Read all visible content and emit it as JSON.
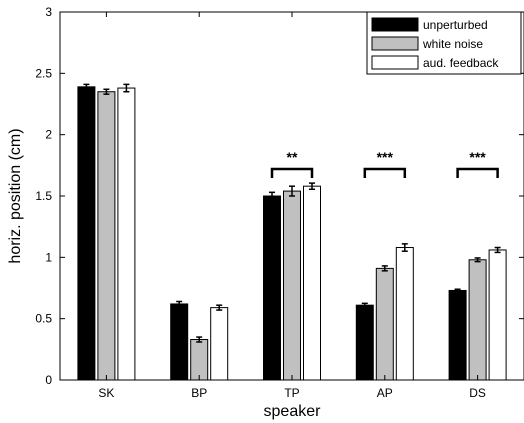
{
  "chart_data": {
    "type": "bar",
    "xlabel": "speaker",
    "ylabel": "horiz. position (cm)",
    "ylim": [
      0,
      3
    ],
    "yticks": [
      "0",
      "0.5",
      "1",
      "1.5",
      "2",
      "2.5",
      "3"
    ],
    "categories": [
      "SK",
      "BP",
      "TP",
      "AP",
      "DS"
    ],
    "grid": false,
    "legend_position": "top-right",
    "series": [
      {
        "name": "unperturbed",
        "color": "#000000",
        "values": [
          2.39,
          0.62,
          1.5,
          0.61,
          0.73
        ],
        "errors": [
          0.02,
          0.02,
          0.03,
          0.015,
          0.01
        ]
      },
      {
        "name": "white noise",
        "color": "#c0c0c0",
        "values": [
          2.35,
          0.33,
          1.54,
          0.91,
          0.98
        ],
        "errors": [
          0.02,
          0.02,
          0.04,
          0.02,
          0.015
        ]
      },
      {
        "name": "aud. feedback",
        "color": "#ffffff",
        "values": [
          2.38,
          0.59,
          1.58,
          1.08,
          1.06
        ],
        "errors": [
          0.03,
          0.02,
          0.025,
          0.03,
          0.02
        ]
      }
    ],
    "annotations": [
      {
        "category": "TP",
        "label": "**",
        "y": 1.72
      },
      {
        "category": "AP",
        "label": "***",
        "y": 1.72
      },
      {
        "category": "DS",
        "label": "***",
        "y": 1.72
      }
    ]
  }
}
